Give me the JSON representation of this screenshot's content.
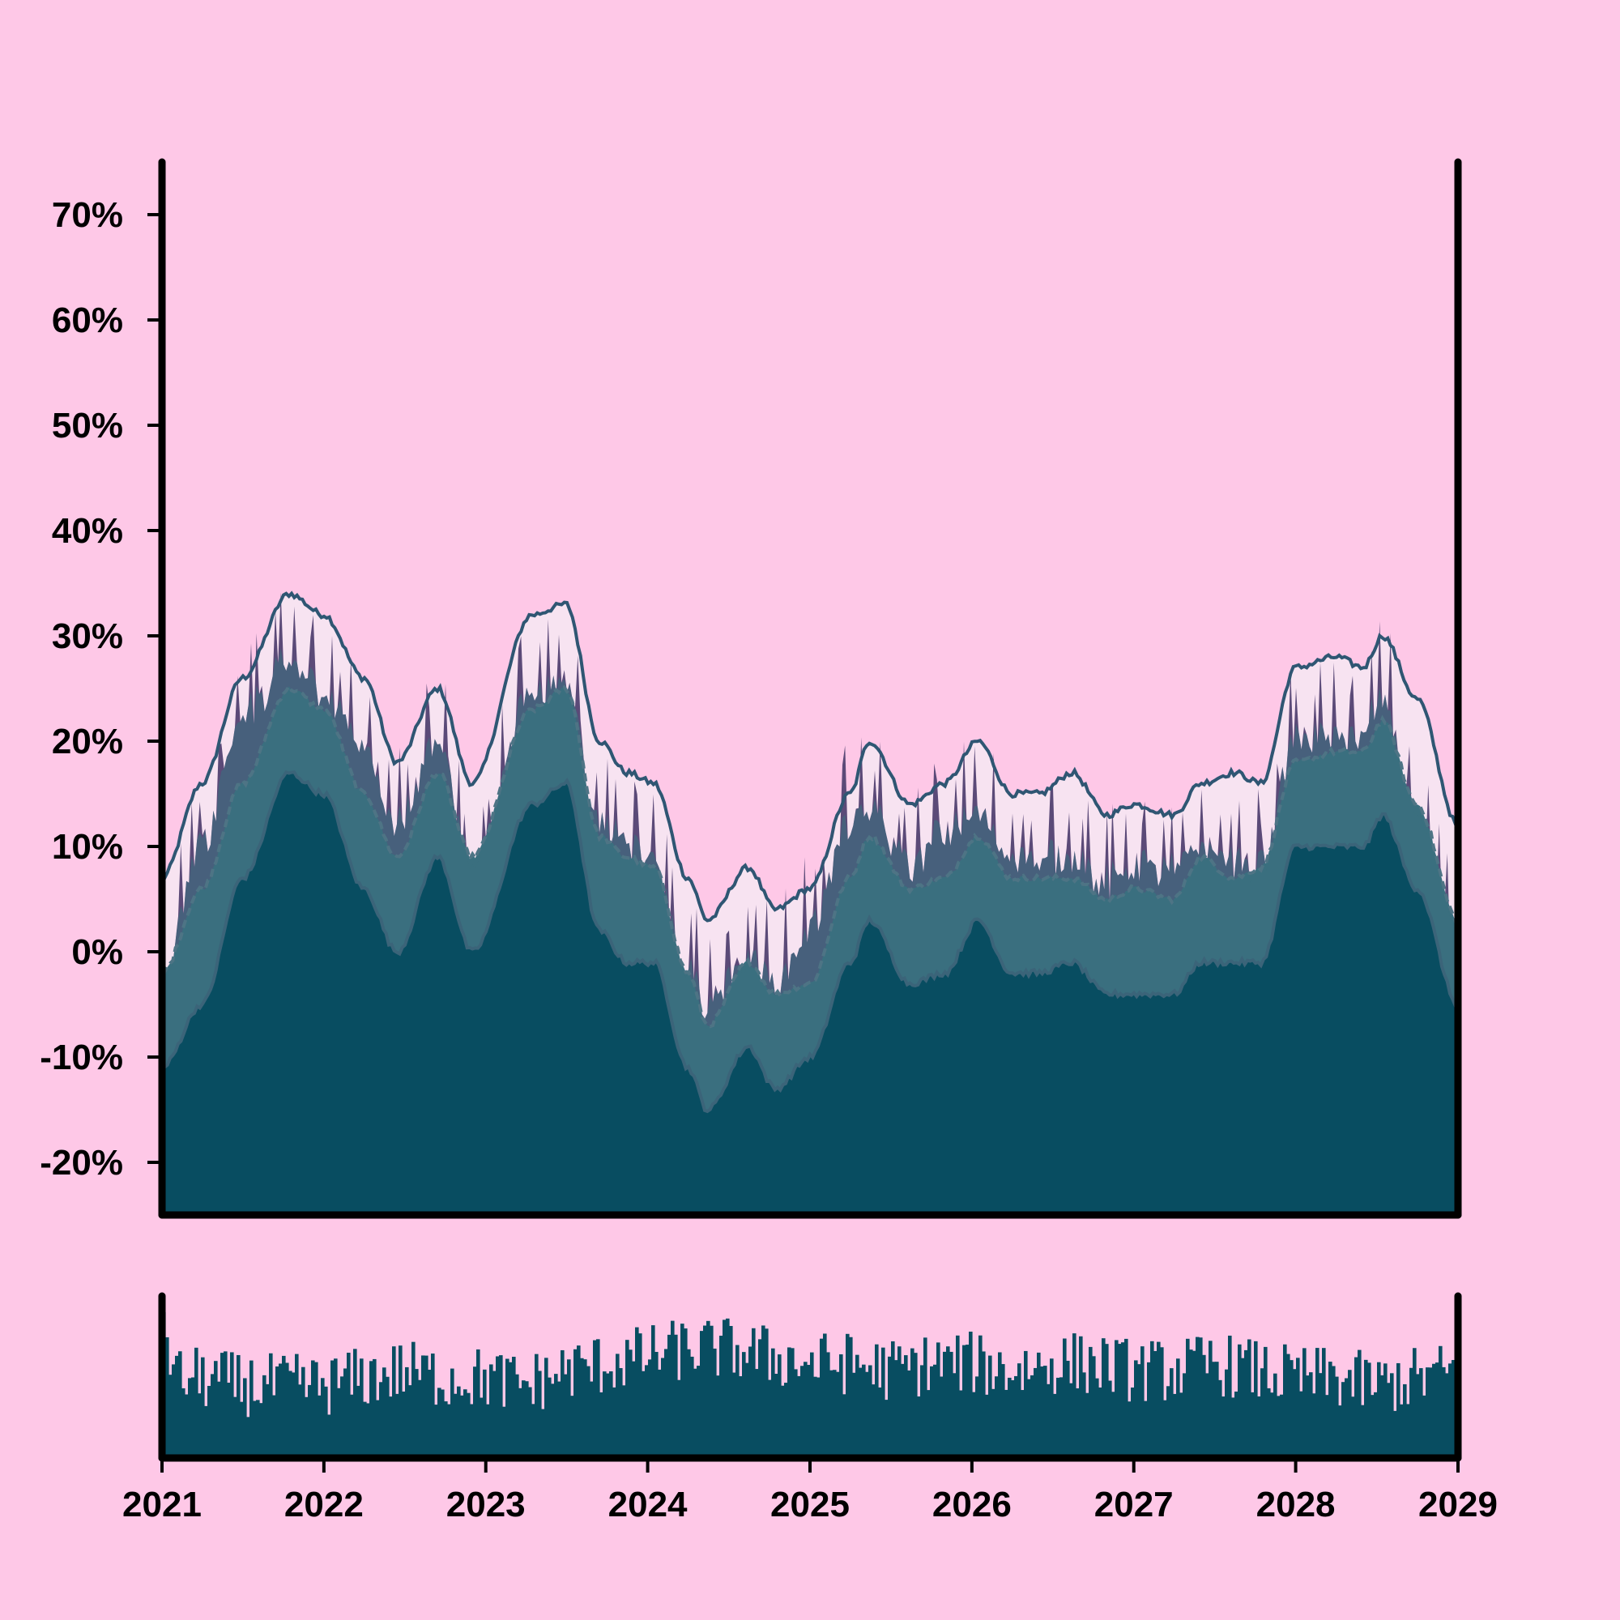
{
  "chart_data": [
    {
      "type": "area",
      "title": "",
      "xlabel": "",
      "ylabel": "",
      "xlim": [
        "2021-01-01",
        "2029-01-01"
      ],
      "ylim": [
        -25,
        75
      ],
      "y_ticks": [
        {
          "value": 70,
          "label": "70%"
        },
        {
          "value": 60,
          "label": "60%"
        },
        {
          "value": 50,
          "label": "50%"
        },
        {
          "value": 40,
          "label": "40%"
        },
        {
          "value": 30,
          "label": "30%"
        },
        {
          "value": 20,
          "label": "20%"
        },
        {
          "value": 10,
          "label": "10%"
        },
        {
          "value": 0,
          "label": "0%"
        },
        {
          "value": -10,
          "label": "-10%"
        },
        {
          "value": -20,
          "label": "-20%"
        }
      ],
      "x_ticks": [
        {
          "value": "2021-01-01",
          "label": "2021"
        },
        {
          "value": "2022-01-01",
          "label": "2022"
        },
        {
          "value": "2023-01-01",
          "label": "2023"
        },
        {
          "value": "2024-01-01",
          "label": "2024"
        },
        {
          "value": "2025-01-01",
          "label": "2025"
        },
        {
          "value": "2026-01-01",
          "label": "2026"
        },
        {
          "value": "2027-01-01",
          "label": "2027"
        },
        {
          "value": "2028-01-01",
          "label": "2028"
        },
        {
          "value": "2029-01-01",
          "label": "2029"
        }
      ],
      "grid": false,
      "legend": "none",
      "x": [
        "2021-01-01",
        "2021-04-01",
        "2021-07-01",
        "2021-10-15",
        "2022-01-01",
        "2022-04-01",
        "2022-06-15",
        "2022-09-15",
        "2022-12-01",
        "2023-04-15",
        "2023-07-01",
        "2023-09-15",
        "2023-11-15",
        "2024-01-15",
        "2024-04-01",
        "2024-05-15",
        "2024-08-15",
        "2024-10-15",
        "2025-01-01",
        "2025-04-01",
        "2025-05-15",
        "2025-08-15",
        "2025-11-01",
        "2026-01-15",
        "2026-04-01",
        "2026-06-01",
        "2026-08-15",
        "2026-11-01",
        "2027-01-01",
        "2027-04-01",
        "2027-06-01",
        "2027-08-15",
        "2027-10-15",
        "2028-01-01",
        "2028-04-01",
        "2028-06-01",
        "2028-07-15",
        "2028-10-01",
        "2029-01-01"
      ],
      "series": [
        {
          "role": "upper band",
          "style": "solid line",
          "color": "#2f5673",
          "values": [
            7,
            16,
            26,
            34,
            32,
            26,
            18,
            25,
            16,
            32,
            33,
            20,
            17,
            16,
            7,
            3,
            8,
            4,
            6,
            15,
            20,
            14,
            16,
            20,
            15,
            15,
            17,
            13,
            14,
            13,
            16,
            17,
            16,
            27,
            28,
            27,
            30,
            24,
            12
          ]
        },
        {
          "role": "centre line",
          "style": "dashed line",
          "color": "#4e7485",
          "values": [
            -2,
            6,
            16,
            25,
            23,
            15,
            9,
            17,
            9,
            23,
            25,
            11,
            9,
            8,
            -2,
            -7,
            -1,
            -4,
            -3,
            7,
            11,
            6,
            7,
            11,
            7,
            7,
            7,
            5,
            6,
            5,
            9,
            7,
            8,
            18,
            19,
            19,
            22,
            14,
            3
          ]
        },
        {
          "role": "lower band",
          "style": "solid line",
          "color": "#3b6479",
          "values": [
            -11,
            -5,
            7,
            17,
            15,
            6,
            0,
            9,
            0,
            14,
            16,
            2,
            -1,
            -1,
            -11,
            -15,
            -9,
            -13,
            -10,
            -1,
            3,
            -3,
            -2,
            3,
            -2,
            -2,
            -1,
            -4,
            -4,
            -4,
            -1,
            -1,
            -1,
            10,
            10,
            10,
            13,
            6,
            -5
          ]
        },
        {
          "role": "raw signal",
          "style": "spiky filled area",
          "color": "#5b4a78",
          "values": [
            -2,
            10,
            22,
            27,
            24,
            20,
            12,
            20,
            7,
            24,
            26,
            12,
            10,
            8,
            -3,
            -5,
            -1,
            -3,
            2,
            12,
            13,
            8,
            11,
            13,
            9,
            8,
            9,
            6,
            8,
            7,
            10,
            8,
            8,
            20,
            20,
            20,
            24,
            12,
            0
          ]
        }
      ]
    },
    {
      "type": "bar",
      "title": "",
      "xlabel": "",
      "ylabel": "",
      "xlim": [
        "2021-01-01",
        "2029-01-01"
      ],
      "grid": false,
      "legend": "none",
      "color": "#084d61",
      "x": [
        "2021-01-01",
        "2021-02-01",
        "2021-04-01",
        "2021-07-01",
        "2021-10-01",
        "2022-01-01",
        "2022-04-01",
        "2022-07-01",
        "2022-10-01",
        "2023-01-01",
        "2023-04-01",
        "2023-07-01",
        "2023-10-01",
        "2024-01-01",
        "2024-04-01",
        "2024-07-01",
        "2024-10-01",
        "2025-01-01",
        "2025-04-01",
        "2025-07-01",
        "2025-10-01",
        "2026-01-01",
        "2026-04-01",
        "2026-07-01",
        "2026-10-01",
        "2027-01-01",
        "2027-04-01",
        "2027-07-01",
        "2027-10-01",
        "2028-01-01",
        "2028-04-01",
        "2028-07-01",
        "2028-10-01",
        "2029-01-01"
      ],
      "values": [
        1.0,
        0.55,
        0.55,
        0.5,
        0.5,
        0.5,
        0.55,
        0.6,
        0.55,
        0.55,
        0.5,
        0.6,
        0.65,
        0.7,
        0.75,
        0.75,
        0.7,
        0.65,
        0.65,
        0.6,
        0.65,
        0.65,
        0.6,
        0.65,
        0.65,
        0.6,
        0.6,
        0.65,
        0.6,
        0.55,
        0.55,
        0.5,
        0.55,
        0.6
      ],
      "noise": 0.22,
      "bar_count": 400
    }
  ]
}
